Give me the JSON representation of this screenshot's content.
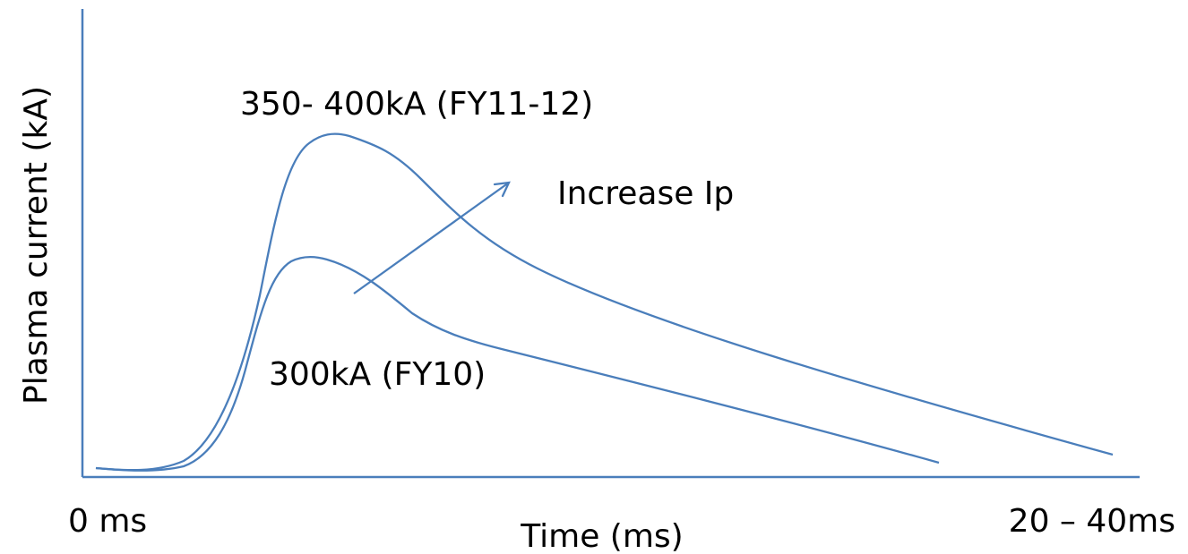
{
  "diagram": {
    "type": "line",
    "ylabel": "Plasma current (kA)",
    "xlabel": "Time (ms)",
    "x_start_label": "0 ms",
    "x_end_label": "20 – 40ms",
    "curves": [
      {
        "label": "350- 400kA (FY11-12)"
      },
      {
        "label": "300kA (FY10)"
      }
    ],
    "arrow_label": "Increase Ip",
    "colors": {
      "line": "#4a7ebb",
      "axis": "#4a7ebb",
      "text": "#000000",
      "background": "#ffffff"
    }
  }
}
